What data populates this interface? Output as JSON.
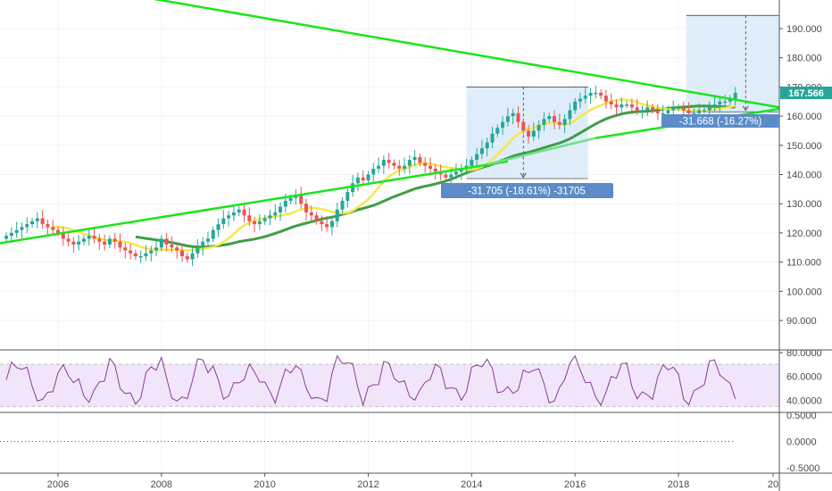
{
  "colors": {
    "up": "#26a69a",
    "down": "#ef5350",
    "trendline": "#19e619",
    "ma_fast": "#f5e84a",
    "ma_slow": "#3f9e46",
    "ma_mid": "#6fe08a",
    "rsi": "#8b3a9c",
    "rsi_band": "#ebdcf6",
    "measure_box": "#d7e9fa",
    "measure_label": "#5b8cc7",
    "last_price": "#26a69a"
  },
  "chart_data": [
    {
      "type": "candlestick",
      "panel": "price",
      "x_tick_labels": [
        "2006",
        "2008",
        "2010",
        "2012",
        "2014",
        "2016",
        "2018",
        "20"
      ],
      "y_tick_labels": [
        "80.0000",
        "90.000",
        "100.000",
        "110.000",
        "120.000",
        "130.000",
        "140.000",
        "150.000",
        "160.000",
        "170.000",
        "180.000",
        "190.000"
      ],
      "ylim": [
        78,
        200
      ],
      "xlim": [
        2004.9,
        2019.55
      ],
      "last_price_label": "167.566",
      "last_price": 167.566,
      "series": [
        {
          "key": "ohlc",
          "x": [
            2005.0,
            2005.1,
            2005.2,
            2005.3,
            2005.4,
            2005.5,
            2005.6,
            2005.7,
            2005.8,
            2005.9,
            2006.0,
            2006.1,
            2006.2,
            2006.3,
            2006.4,
            2006.5,
            2006.6,
            2006.7,
            2006.8,
            2006.9,
            2007.0,
            2007.1,
            2007.2,
            2007.3,
            2007.4,
            2007.5,
            2007.6,
            2007.7,
            2007.8,
            2007.9,
            2008.0,
            2008.1,
            2008.2,
            2008.3,
            2008.4,
            2008.5,
            2008.6,
            2008.7,
            2008.8,
            2008.9,
            2009.0,
            2009.1,
            2009.2,
            2009.3,
            2009.4,
            2009.5,
            2009.6,
            2009.7,
            2009.8,
            2009.9,
            2010.0,
            2010.1,
            2010.2,
            2010.3,
            2010.4,
            2010.5,
            2010.6,
            2010.7,
            2010.8,
            2010.9,
            2011.0,
            2011.1,
            2011.2,
            2011.3,
            2011.4,
            2011.5,
            2011.6,
            2011.7,
            2011.8,
            2011.9,
            2012.0,
            2012.1,
            2012.2,
            2012.3,
            2012.4,
            2012.5,
            2012.6,
            2012.7,
            2012.8,
            2012.9,
            2013.0,
            2013.1,
            2013.2,
            2013.3,
            2013.4,
            2013.5,
            2013.6,
            2013.7,
            2013.8,
            2013.9,
            2014.0,
            2014.1,
            2014.2,
            2014.3,
            2014.4,
            2014.5,
            2014.6,
            2014.7,
            2014.8,
            2014.9,
            2015.0,
            2015.1,
            2015.2,
            2015.3,
            2015.4,
            2015.5,
            2015.6,
            2015.7,
            2015.8,
            2015.9,
            2016.0,
            2016.1,
            2016.2,
            2016.3,
            2016.4,
            2016.5,
            2016.6,
            2016.7,
            2016.8,
            2016.9,
            2017.0,
            2017.1,
            2017.2,
            2017.3,
            2017.4,
            2017.5,
            2017.6,
            2017.7,
            2017.8,
            2017.9,
            2018.0,
            2018.1,
            2018.2,
            2018.3,
            2018.4,
            2018.5,
            2018.6,
            2018.7,
            2018.8,
            2018.9,
            2019.0,
            2019.1
          ],
          "close": [
            119,
            120,
            121,
            122,
            123,
            124,
            125,
            123,
            122,
            121,
            120,
            118,
            117,
            116,
            117,
            118,
            119,
            118,
            117,
            116,
            118,
            117,
            115,
            114,
            113,
            112,
            112,
            113,
            114,
            115,
            118,
            116,
            115,
            114,
            112,
            111,
            113,
            115,
            117,
            118,
            121,
            123,
            125,
            126,
            127,
            128,
            126,
            124,
            123,
            124,
            125,
            126,
            127,
            129,
            131,
            132,
            133,
            130,
            127,
            126,
            124,
            123,
            122,
            124,
            128,
            131,
            134,
            137,
            139,
            138,
            140,
            142,
            143,
            145,
            144,
            143,
            142,
            143,
            145,
            146,
            144,
            143,
            142,
            141,
            140,
            139,
            140,
            141,
            142,
            143,
            145,
            147,
            149,
            151,
            154,
            156,
            158,
            160,
            161,
            158,
            155,
            153,
            155,
            157,
            159,
            160,
            158,
            157,
            159,
            162,
            165,
            166,
            167,
            168,
            168,
            167,
            165,
            164,
            163,
            164,
            164,
            163,
            162,
            162,
            163,
            162,
            161,
            161,
            162,
            163,
            163,
            162,
            161,
            161,
            162,
            162,
            163,
            164,
            165,
            165,
            166,
            168
          ],
          "open": [
            118,
            119,
            120,
            121,
            122,
            123,
            124,
            125,
            123,
            122,
            121,
            120,
            118,
            117,
            116,
            117,
            118,
            119,
            118,
            117,
            116,
            118,
            117,
            115,
            114,
            113,
            112,
            112,
            113,
            114,
            115,
            118,
            116,
            115,
            114,
            112,
            111,
            113,
            115,
            117,
            118,
            121,
            123,
            125,
            126,
            127,
            128,
            126,
            124,
            123,
            124,
            125,
            126,
            127,
            129,
            131,
            132,
            133,
            130,
            127,
            126,
            124,
            123,
            122,
            124,
            128,
            131,
            134,
            137,
            139,
            138,
            140,
            142,
            143,
            145,
            144,
            143,
            142,
            143,
            145,
            146,
            144,
            143,
            142,
            141,
            140,
            139,
            140,
            141,
            142,
            143,
            145,
            147,
            149,
            151,
            154,
            156,
            158,
            160,
            161,
            158,
            155,
            153,
            155,
            157,
            159,
            160,
            158,
            157,
            159,
            162,
            165,
            166,
            167,
            168,
            168,
            167,
            165,
            164,
            163,
            164,
            164,
            163,
            162,
            162,
            163,
            162,
            161,
            161,
            162,
            163,
            163,
            162,
            161,
            161,
            162,
            162,
            163,
            164,
            165,
            165,
            166
          ]
        }
      ]
    },
    {
      "type": "line",
      "panel": "rsi",
      "y_tick_labels": [
        "40.0000",
        "60.0000",
        "80.0000"
      ],
      "ylim": [
        30,
        82
      ],
      "band": [
        35,
        70
      ]
    },
    {
      "type": "line",
      "panel": "oscillator",
      "y_tick_labels": [
        "-0.5000",
        "0.0000",
        "0.5000"
      ],
      "ylim": [
        -0.6,
        0.55
      ]
    }
  ],
  "annotations": {
    "measure_left": "-31.705 (-18.61%) -31705",
    "measure_right": "-31.668 (-16.27%)"
  }
}
